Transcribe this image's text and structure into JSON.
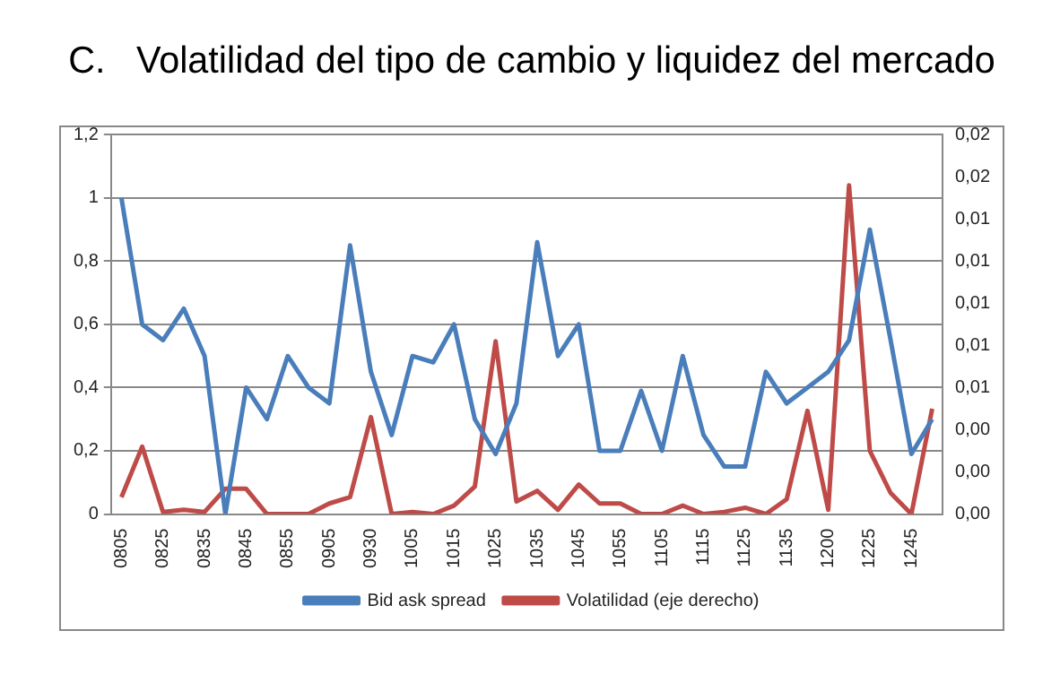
{
  "chart_data": {
    "type": "line",
    "title": "C.   Volatilidad del tipo de cambio y liquidez del mercado",
    "categories": [
      "0805",
      null,
      "0825",
      null,
      "0835",
      null,
      "0845",
      null,
      "0855",
      null,
      "0905",
      null,
      "0930",
      null,
      "1005",
      null,
      "1015",
      null,
      "1025",
      null,
      "1035",
      null,
      "1045",
      null,
      "1055",
      null,
      "1105",
      null,
      "1115",
      null,
      "1125",
      null,
      "1135",
      null,
      "1200",
      null,
      "1225",
      null,
      "1245",
      null
    ],
    "series": [
      {
        "name": "Bid ask spread",
        "color": "#4a7ebb",
        "values": [
          1.0,
          0.6,
          0.55,
          0.65,
          0.5,
          0,
          0.4,
          0.3,
          0.5,
          0.4,
          0.35,
          0.85,
          0.45,
          0.25,
          0.5,
          0.48,
          0.6,
          0.3,
          0.19,
          0.35,
          0.86,
          0.5,
          0.6,
          0.2,
          0.2,
          0.39,
          0.2,
          0.5,
          0.25,
          0.15,
          0.15,
          0.45,
          0.35,
          0.4,
          0.45,
          0.55,
          0.9,
          0.55,
          0.19,
          0.3
        ]
      },
      {
        "name": "Volatilidad (eje derecho)",
        "color": "#be4b48",
        "axis": "y2",
        "values": [
          0.0008,
          0.0032,
          0.0001,
          0.0002,
          0.0001,
          0.0012,
          0.0012,
          0,
          0,
          0,
          0.0005,
          0.0008,
          0.0046,
          0,
          0.0001,
          0,
          0.0004,
          0.0013,
          0.0082,
          0.0006,
          0.0011,
          0.0002,
          0.0014,
          0.0005,
          0.0005,
          0,
          0,
          0.0004,
          0,
          0.0001,
          0.0003,
          0,
          0.0007,
          0.0049,
          0.0002,
          0.0156,
          0.003,
          0.001,
          0,
          0.005
        ]
      }
    ],
    "ylim": [
      0,
      1.2
    ],
    "yticks": [
      0,
      {
        "value": 0.2,
        "label": "0,2"
      },
      {
        "value": 0.4,
        "label": "0,4"
      },
      {
        "value": 0.6,
        "label": "0,6"
      },
      {
        "value": 0.8,
        "label": "0,8"
      },
      1,
      {
        "value": 1.2,
        "label": "1,2"
      }
    ],
    "y2lim": [
      0,
      0.018
    ],
    "y2ticks": [
      {
        "value": 0,
        "label": "0,00"
      },
      {
        "value": 0.002,
        "label": "0,00"
      },
      {
        "value": 0.004,
        "label": "0,00"
      },
      {
        "value": 0.006,
        "label": "0,01"
      },
      {
        "value": 0.008,
        "label": "0,01"
      },
      {
        "value": 0.01,
        "label": "0,01"
      },
      {
        "value": 0.012,
        "label": "0,01"
      },
      {
        "value": 0.014,
        "label": "0,01"
      },
      {
        "value": 0.016,
        "label": "0,02"
      },
      {
        "value": 0.018,
        "label": "0,02"
      }
    ],
    "grid": "y",
    "legend": "bottom",
    "marker": "none",
    "line_style": "solid"
  }
}
